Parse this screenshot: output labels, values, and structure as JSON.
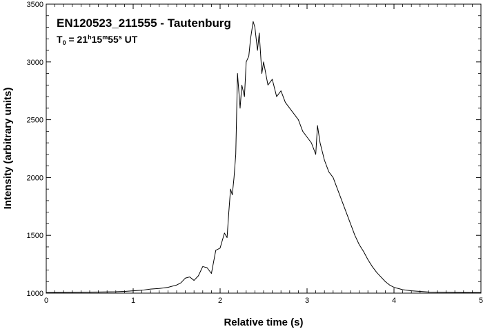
{
  "chart_data": {
    "type": "line",
    "title": "EN120523_211555 - Tautenburg",
    "subtitle": {
      "prefix": "T",
      "prefix_sub": "0",
      "eq": " = 21",
      "h": "h",
      "mid1": "15",
      "m": "m",
      "mid2": "55",
      "s": "s",
      "suffix": " UT"
    },
    "xlabel": "Relative time (s)",
    "ylabel": "Intensity (arbitrary units)",
    "xlim": [
      0,
      5
    ],
    "ylim": [
      1000,
      3500
    ],
    "x_ticks": [
      0,
      1,
      2,
      3,
      4,
      5
    ],
    "y_ticks": [
      1000,
      1500,
      2000,
      2500,
      3000,
      3500
    ],
    "grid": false,
    "line_color": "#000000",
    "series": [
      {
        "x": [
          0.0,
          0.2,
          0.4,
          0.6,
          0.8,
          0.9,
          1.0,
          1.1,
          1.2,
          1.3,
          1.4,
          1.5,
          1.55,
          1.6,
          1.65,
          1.7,
          1.75,
          1.8,
          1.85,
          1.9,
          1.95,
          2.0,
          2.05,
          2.08,
          2.1,
          2.12,
          2.14,
          2.16,
          2.18,
          2.2,
          2.23,
          2.25,
          2.28,
          2.3,
          2.33,
          2.35,
          2.38,
          2.4,
          2.43,
          2.45,
          2.48,
          2.5,
          2.55,
          2.6,
          2.65,
          2.7,
          2.75,
          2.8,
          2.85,
          2.9,
          2.95,
          3.0,
          3.05,
          3.1,
          3.12,
          3.15,
          3.2,
          3.25,
          3.3,
          3.35,
          3.4,
          3.45,
          3.5,
          3.55,
          3.6,
          3.65,
          3.7,
          3.75,
          3.8,
          3.85,
          3.9,
          3.95,
          4.0,
          4.1,
          4.2,
          4.4,
          4.6,
          4.8,
          5.0
        ],
        "y": [
          1005,
          1007,
          1008,
          1010,
          1012,
          1015,
          1020,
          1025,
          1035,
          1040,
          1050,
          1070,
          1090,
          1130,
          1140,
          1110,
          1150,
          1230,
          1220,
          1170,
          1370,
          1390,
          1520,
          1480,
          1700,
          1900,
          1850,
          2000,
          2200,
          2900,
          2600,
          2800,
          2700,
          3000,
          3050,
          3200,
          3350,
          3300,
          3100,
          3250,
          2900,
          3000,
          2800,
          2850,
          2700,
          2750,
          2650,
          2600,
          2550,
          2500,
          2400,
          2350,
          2300,
          2200,
          2450,
          2300,
          2150,
          2050,
          2000,
          1900,
          1800,
          1700,
          1600,
          1500,
          1420,
          1360,
          1290,
          1230,
          1180,
          1140,
          1100,
          1070,
          1050,
          1030,
          1020,
          1010,
          1008,
          1006,
          1005
        ]
      }
    ]
  }
}
